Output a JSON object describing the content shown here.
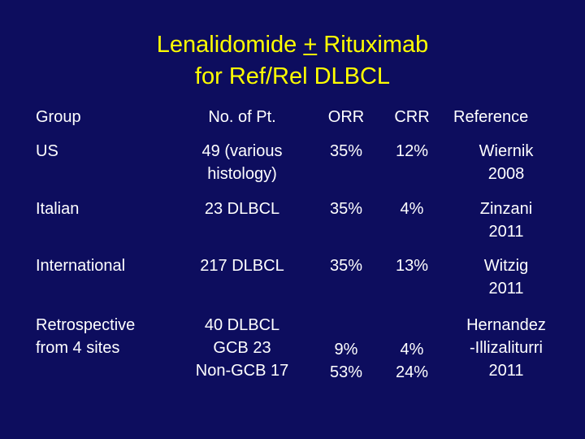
{
  "title": {
    "line1_a": "Lenalidomide ",
    "line1_u": "+",
    "line1_b": " Rituximab",
    "line2": "for Ref/Rel DLBCL"
  },
  "table": {
    "headers": {
      "group": "Group",
      "pts": "No. of Pt.",
      "orr": "ORR",
      "crr": "CRR",
      "ref": "Reference"
    },
    "rows": [
      {
        "group": [
          "US"
        ],
        "pts": [
          "49 (various",
          "histology)"
        ],
        "orr": [
          "35%"
        ],
        "crr": [
          "12%"
        ],
        "ref": [
          "Wiernik",
          "2008"
        ]
      },
      {
        "group": [
          "Italian"
        ],
        "pts": [
          "23 DLBCL"
        ],
        "orr": [
          "35%"
        ],
        "crr": [
          "4%"
        ],
        "ref": [
          "Zinzani",
          "2011"
        ]
      },
      {
        "group": [
          "International"
        ],
        "pts": [
          "217 DLBCL"
        ],
        "orr": [
          "35%"
        ],
        "crr": [
          "13%"
        ],
        "ref": [
          "Witzig",
          "2011"
        ]
      },
      {
        "group": [
          "Retrospective",
          "from 4 sites"
        ],
        "pts": [
          "40 DLBCL",
          "GCB 23",
          "Non-GCB 17"
        ],
        "orr": [
          "9%",
          "53%"
        ],
        "crr": [
          "4%",
          "24%"
        ],
        "ref": [
          "Hernandez",
          "-Illizaliturri",
          "2011"
        ]
      }
    ]
  },
  "colors": {
    "background": "#0d0d5e",
    "title": "#ffff00",
    "text": "#ffffff"
  }
}
